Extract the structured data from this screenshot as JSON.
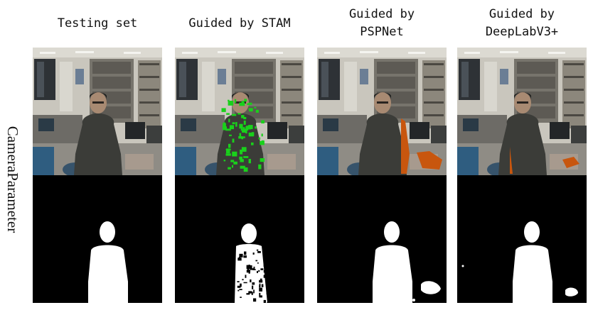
{
  "row_label": "CameraParameter",
  "columns": [
    {
      "title": "Testing set",
      "overlay": "none",
      "overlay_color": ""
    },
    {
      "title": "Guided by STAM",
      "overlay": "stam",
      "overlay_color": "#19d11b"
    },
    {
      "title": "Guided by\nPSPNet",
      "overlay": "psp",
      "overlay_color": "#c8560e"
    },
    {
      "title": "Guided by\nDeepLabV3+",
      "overlay": "deeplab",
      "overlay_color": "#c8560e"
    }
  ],
  "colors": {
    "wall": "#c9c6bd",
    "ceiling": "#dcdad2",
    "jacket": "#3b3c38",
    "hair": "#1c1c1a",
    "skin": "#a88a72",
    "floor": "#8f8c85",
    "mask_fg": "#ffffff",
    "mask_bg": "#000000"
  }
}
